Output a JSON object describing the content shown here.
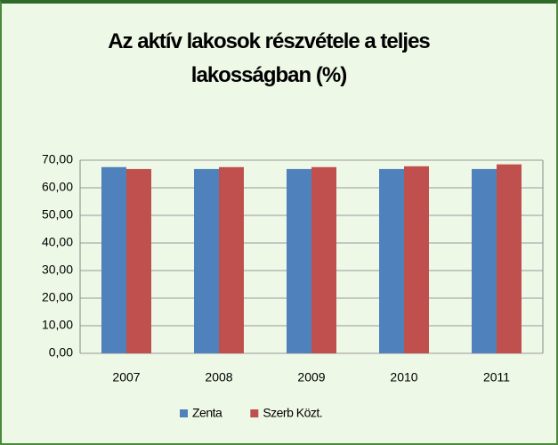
{
  "chart_data": {
    "type": "bar",
    "title": "Az aktív lakosok részvétele a teljes lakosságban (%)",
    "categories": [
      "2007",
      "2008",
      "2009",
      "2010",
      "2011"
    ],
    "series": [
      {
        "name": "Zenta",
        "color": "#4f81bd",
        "values": [
          67.5,
          66.8,
          66.8,
          66.8,
          66.8
        ]
      },
      {
        "name": "Szerb Közt.",
        "color": "#c0504d",
        "values": [
          66.8,
          67.5,
          67.5,
          67.8,
          68.5
        ]
      }
    ],
    "ylim": [
      0,
      70
    ],
    "yticks": [
      {
        "value": 0,
        "label": "0,00"
      },
      {
        "value": 10,
        "label": "10,00"
      },
      {
        "value": 20,
        "label": "20,00"
      },
      {
        "value": 30,
        "label": "30,00"
      },
      {
        "value": 40,
        "label": "40,00"
      },
      {
        "value": 50,
        "label": "50,00"
      },
      {
        "value": 60,
        "label": "60,00"
      },
      {
        "value": 70,
        "label": "70,00"
      }
    ],
    "grid": true,
    "legend": "bottom"
  }
}
